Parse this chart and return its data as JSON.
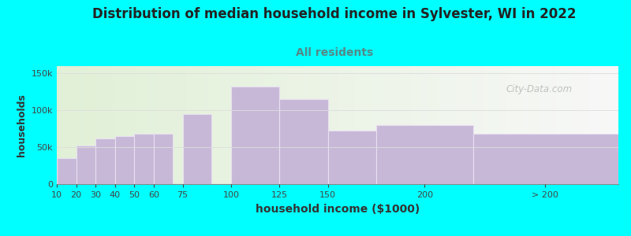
{
  "title": "Distribution of median household income in Sylvester, WI in 2022",
  "subtitle": "All residents",
  "xlabel": "household income ($1000)",
  "ylabel": "households",
  "bar_values": [
    35000,
    52000,
    62000,
    65000,
    68000,
    68000,
    95000,
    132000,
    115000,
    73000,
    80000,
    68000
  ],
  "x_positions": [
    10,
    20,
    30,
    40,
    50,
    60,
    75,
    100,
    125,
    150,
    175,
    225
  ],
  "x_widths": [
    10,
    10,
    10,
    10,
    10,
    10,
    15,
    25,
    25,
    25,
    50,
    75
  ],
  "tick_positions": [
    10,
    20,
    30,
    40,
    50,
    60,
    75,
    100,
    125,
    150,
    200,
    262
  ],
  "tick_labels": [
    "10",
    "20",
    "30",
    "40",
    "50",
    "60",
    "75",
    "100",
    "125",
    "150",
    "200",
    "> 200"
  ],
  "bar_color": "#c8b8d8",
  "bar_edge_color": "#e8e0f0",
  "bg_color": "#00ffff",
  "ylim": [
    0,
    160000
  ],
  "yticks": [
    0,
    50000,
    100000,
    150000
  ],
  "ytick_labels": [
    "0",
    "50k",
    "100k",
    "150k"
  ],
  "watermark": "City-Data.com",
  "title_fontsize": 12,
  "subtitle_fontsize": 10,
  "subtitle_color": "#558888",
  "xlim_min": 10,
  "xlim_max": 300
}
